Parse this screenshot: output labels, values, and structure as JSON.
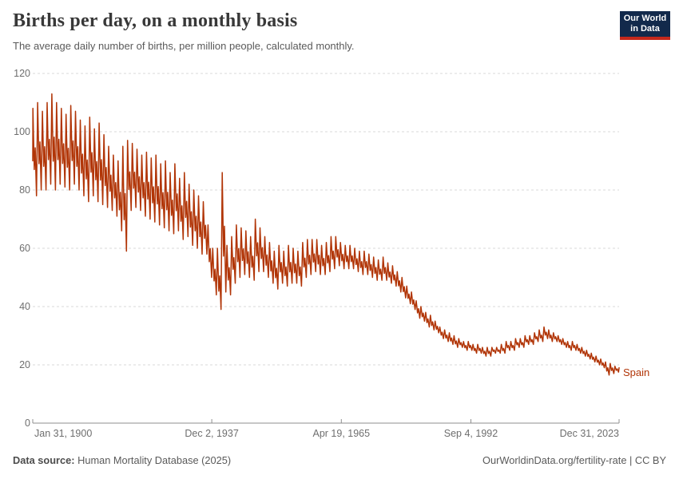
{
  "header": {
    "title": "Births per day, on a monthly basis",
    "subtitle": "The average daily number of births, per million people, calculated monthly.",
    "logo": {
      "line1": "Our World",
      "line2": "in Data",
      "bg_color": "#12294b",
      "accent_color": "#c5281c"
    }
  },
  "chart_data": {
    "type": "line",
    "title": "Births per day, on a monthly basis",
    "series": [
      {
        "name": "Spain",
        "color": "#b13507"
      }
    ],
    "x_axis": {
      "tick_labels": [
        "Jan 31, 1900",
        "Dec 2, 1937",
        "Apr 19, 1965",
        "Sep 4, 1992",
        "Dec 31, 2023"
      ],
      "tick_positions": [
        1900.083,
        1937.917,
        1965.297,
        1992.678,
        2023.997
      ],
      "range": [
        1900.083,
        2023.997
      ]
    },
    "y_axis": {
      "tick_values": [
        0,
        20,
        40,
        60,
        80,
        100,
        120
      ],
      "range": [
        0,
        120
      ],
      "grid": "dashed"
    },
    "start_value": 90,
    "end_value": 19,
    "yearly_envelope_note": "Monthly series summarized as [year, seasonal min, seasonal max] read from the plot.",
    "yearly_envelope": [
      [
        1900,
        78,
        108
      ],
      [
        1901,
        80,
        110
      ],
      [
        1902,
        80,
        107
      ],
      [
        1903,
        82,
        110
      ],
      [
        1904,
        80,
        113
      ],
      [
        1905,
        82,
        110
      ],
      [
        1906,
        81,
        108
      ],
      [
        1907,
        80,
        106
      ],
      [
        1908,
        82,
        109
      ],
      [
        1909,
        80,
        107
      ],
      [
        1910,
        78,
        104
      ],
      [
        1911,
        76,
        102
      ],
      [
        1912,
        78,
        105
      ],
      [
        1913,
        76,
        101
      ],
      [
        1914,
        75,
        103
      ],
      [
        1915,
        74,
        99
      ],
      [
        1916,
        73,
        95
      ],
      [
        1917,
        71,
        92
      ],
      [
        1918,
        66,
        90
      ],
      [
        1919,
        59,
        95
      ],
      [
        1920,
        73,
        97
      ],
      [
        1921,
        74,
        96
      ],
      [
        1922,
        73,
        94
      ],
      [
        1923,
        71,
        92
      ],
      [
        1924,
        70,
        93
      ],
      [
        1925,
        69,
        91
      ],
      [
        1926,
        68,
        92
      ],
      [
        1927,
        67,
        89
      ],
      [
        1928,
        66,
        90
      ],
      [
        1929,
        65,
        86
      ],
      [
        1930,
        66,
        89
      ],
      [
        1931,
        63,
        84
      ],
      [
        1932,
        64,
        86
      ],
      [
        1933,
        61,
        82
      ],
      [
        1934,
        60,
        80
      ],
      [
        1935,
        58,
        78
      ],
      [
        1936,
        58,
        76
      ],
      [
        1937,
        50,
        68
      ],
      [
        1938,
        44,
        60
      ],
      [
        1939,
        39,
        60
      ],
      [
        1940,
        45,
        86
      ],
      [
        1941,
        44,
        61
      ],
      [
        1942,
        48,
        64
      ],
      [
        1943,
        50,
        68
      ],
      [
        1944,
        51,
        67
      ],
      [
        1945,
        50,
        66
      ],
      [
        1946,
        49,
        64
      ],
      [
        1947,
        52,
        70
      ],
      [
        1948,
        52,
        67
      ],
      [
        1949,
        50,
        64
      ],
      [
        1950,
        48,
        62
      ],
      [
        1951,
        46,
        59
      ],
      [
        1952,
        48,
        61
      ],
      [
        1953,
        47,
        59
      ],
      [
        1954,
        48,
        61
      ],
      [
        1955,
        48,
        60
      ],
      [
        1956,
        47,
        59
      ],
      [
        1957,
        50,
        62
      ],
      [
        1958,
        51,
        63
      ],
      [
        1959,
        52,
        63
      ],
      [
        1960,
        51,
        63
      ],
      [
        1961,
        51,
        61
      ],
      [
        1962,
        52,
        62
      ],
      [
        1963,
        53,
        64
      ],
      [
        1964,
        54,
        64
      ],
      [
        1965,
        53,
        62
      ],
      [
        1966,
        53,
        61
      ],
      [
        1967,
        53,
        61
      ],
      [
        1968,
        52,
        60
      ],
      [
        1969,
        51,
        59
      ],
      [
        1970,
        51,
        59
      ],
      [
        1971,
        50,
        58
      ],
      [
        1972,
        49,
        57
      ],
      [
        1973,
        49,
        56
      ],
      [
        1974,
        49,
        57
      ],
      [
        1975,
        48,
        55
      ],
      [
        1976,
        47,
        54
      ],
      [
        1977,
        45,
        52
      ],
      [
        1978,
        43,
        50
      ],
      [
        1979,
        41,
        47
      ],
      [
        1980,
        39,
        45
      ],
      [
        1981,
        36,
        42
      ],
      [
        1982,
        35,
        40
      ],
      [
        1983,
        33,
        38
      ],
      [
        1984,
        32,
        37
      ],
      [
        1985,
        31,
        35
      ],
      [
        1986,
        29,
        33
      ],
      [
        1987,
        28,
        32
      ],
      [
        1988,
        27,
        31
      ],
      [
        1989,
        26,
        30
      ],
      [
        1990,
        26,
        29
      ],
      [
        1991,
        25,
        28
      ],
      [
        1992,
        25,
        28
      ],
      [
        1993,
        24,
        27
      ],
      [
        1994,
        24,
        27
      ],
      [
        1995,
        23,
        26
      ],
      [
        1996,
        23,
        26
      ],
      [
        1997,
        24,
        26
      ],
      [
        1998,
        24,
        26
      ],
      [
        1999,
        24,
        27
      ],
      [
        2000,
        25,
        28
      ],
      [
        2001,
        25,
        28
      ],
      [
        2002,
        26,
        29
      ],
      [
        2003,
        26,
        29
      ],
      [
        2004,
        27,
        30
      ],
      [
        2005,
        27,
        30
      ],
      [
        2006,
        28,
        31
      ],
      [
        2007,
        28,
        32
      ],
      [
        2008,
        29,
        33
      ],
      [
        2009,
        28,
        32
      ],
      [
        2010,
        28,
        31
      ],
      [
        2011,
        27,
        30
      ],
      [
        2012,
        26,
        29
      ],
      [
        2013,
        25,
        28
      ],
      [
        2014,
        25,
        28
      ],
      [
        2015,
        24,
        27
      ],
      [
        2016,
        23,
        26
      ],
      [
        2017,
        22,
        25
      ],
      [
        2018,
        21,
        24
      ],
      [
        2019,
        20,
        23
      ],
      [
        2020,
        19,
        22
      ],
      [
        2021,
        16.5,
        21
      ],
      [
        2022,
        17,
        20.5
      ],
      [
        2023,
        17.5,
        19.5
      ]
    ],
    "annotations": {
      "series_end_label": "Spain"
    },
    "colors": {
      "line": "#b13507",
      "grid": "#dadada",
      "axis": "#8f8f8f",
      "tick_text": "#6e6e6e"
    }
  },
  "footer": {
    "datasource_label": "Data source:",
    "datasource_value": " Human Mortality Database (2025)",
    "right_text": "OurWorldinData.org/fertility-rate | CC BY"
  }
}
